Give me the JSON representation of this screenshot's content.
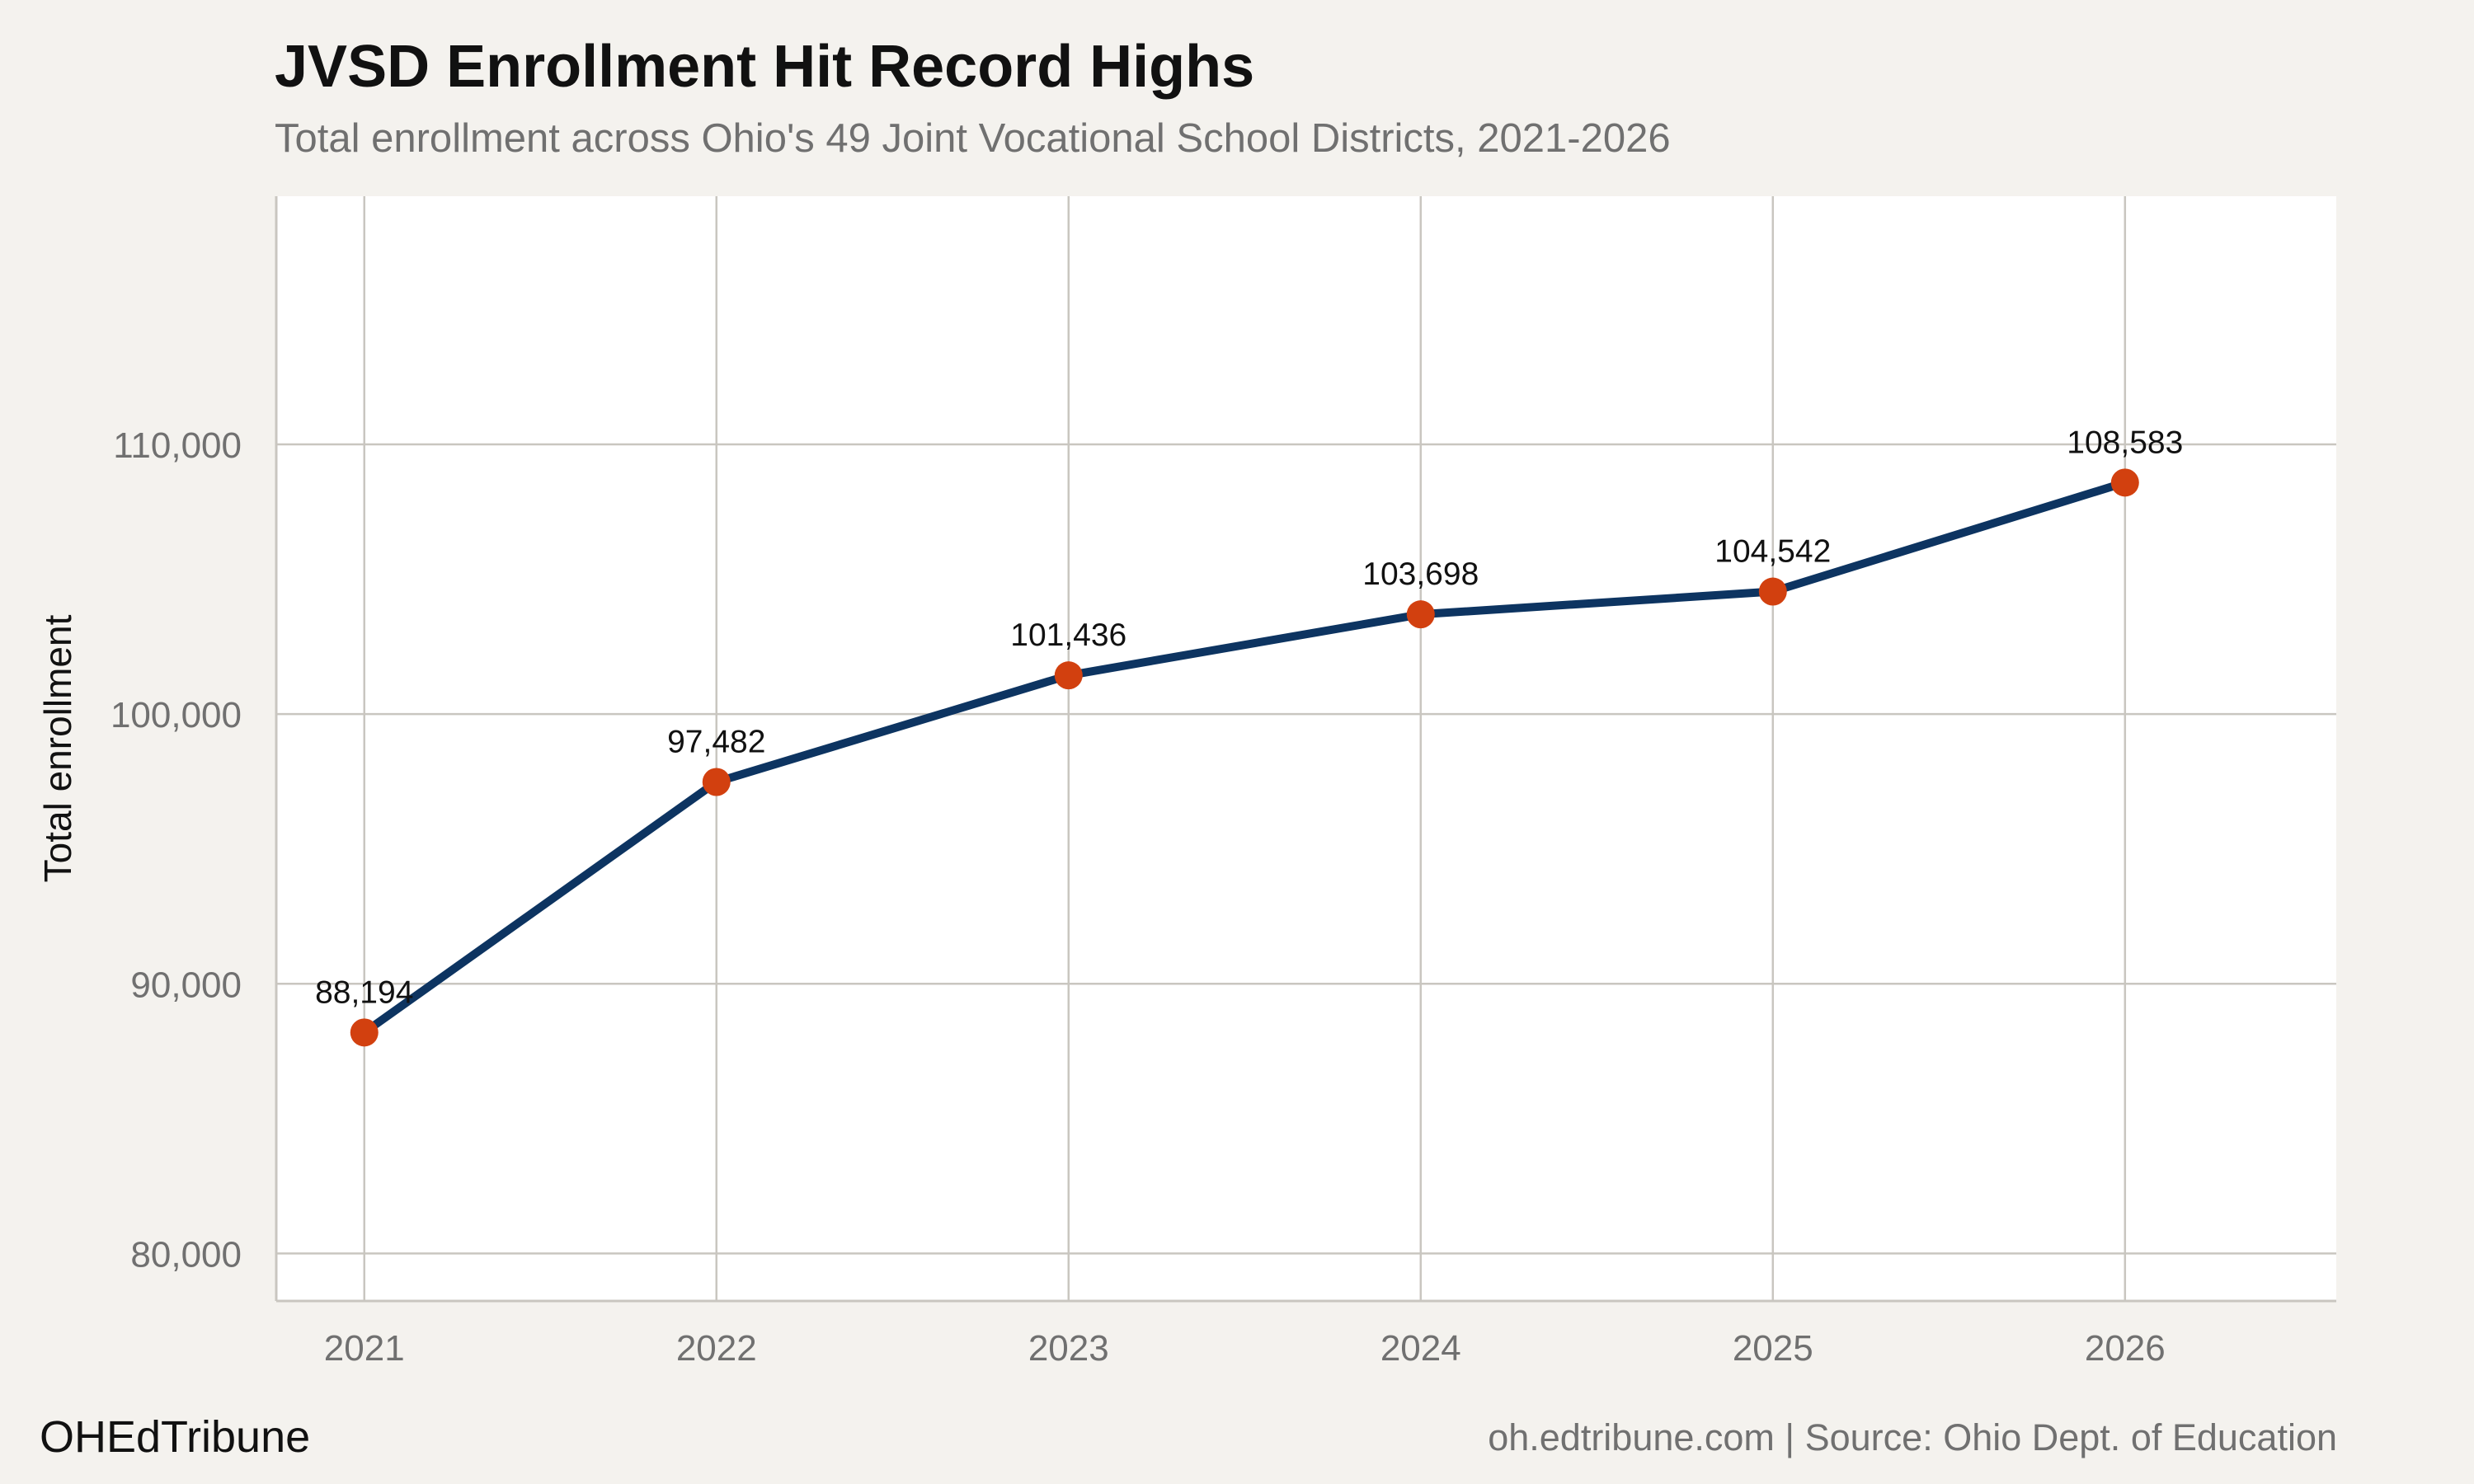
{
  "header": {
    "title": "JVSD Enrollment Hit Record Highs",
    "subtitle": "Total enrollment across Ohio's 49 Joint Vocational School Districts, 2021-2026"
  },
  "footer": {
    "brand": "OHEdTribune",
    "source": "oh.edtribune.com | Source: Ohio Dept. of Education"
  },
  "colors": {
    "line": "#0d3461",
    "point": "#d2400f",
    "panel": "#ffffff",
    "background": "#f4f2ee",
    "grid": "#c9c6c0"
  },
  "chart_data": {
    "type": "line",
    "x": [
      2021,
      2022,
      2023,
      2024,
      2025,
      2026
    ],
    "x_tick_labels": [
      "2021",
      "2022",
      "2023",
      "2024",
      "2025",
      "2026"
    ],
    "series": [
      {
        "values": [
          88194,
          97482,
          101436,
          103698,
          104542,
          108583
        ],
        "data_labels": [
          "88,194",
          "97,482",
          "101,436",
          "103,698",
          "104,542",
          "108,583"
        ]
      }
    ],
    "ylabel": "Total enrollment",
    "xlabel": "",
    "y_ticks": [
      80000,
      90000,
      100000,
      110000
    ],
    "y_tick_labels": [
      "80,000",
      "90,000",
      "100,000",
      "110,000"
    ],
    "xlim": [
      2020.75,
      2026.6
    ],
    "ylim": [
      78240,
      119200
    ],
    "grid": true,
    "legend": "none"
  }
}
